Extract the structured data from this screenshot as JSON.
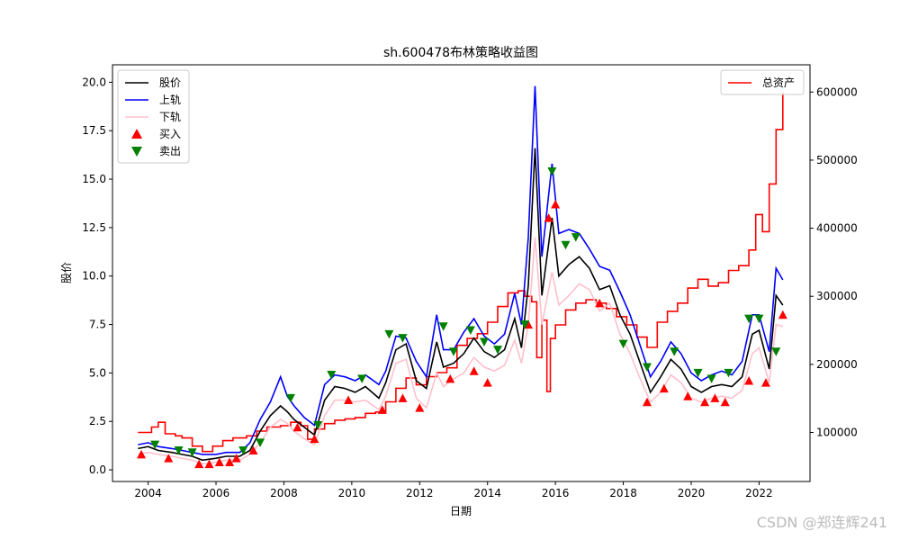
{
  "chart_data": {
    "type": "line",
    "title": "sh.600478布林策略收益图",
    "xlabel": "日期",
    "ylabel": "股价",
    "xlim": [
      2002.95,
      2023.5
    ],
    "ylim": [
      -0.6,
      20.9
    ],
    "y2lim": [
      28000,
      640000
    ],
    "x_ticks": [
      "2004",
      "2006",
      "2008",
      "2010",
      "2012",
      "2014",
      "2016",
      "2018",
      "2020",
      "2022"
    ],
    "x_tick_values": [
      2004,
      2006,
      2008,
      2010,
      2012,
      2014,
      2016,
      2018,
      2020,
      2022
    ],
    "y_ticks": [
      "0.0",
      "2.5",
      "5.0",
      "7.5",
      "10.0",
      "12.5",
      "15.0",
      "17.5",
      "20.0"
    ],
    "y_tick_values": [
      0,
      2.5,
      5,
      7.5,
      10,
      12.5,
      15,
      17.5,
      20
    ],
    "y2_ticks": [
      "100000",
      "200000",
      "300000",
      "400000",
      "500000",
      "600000"
    ],
    "y2_tick_values": [
      100000,
      200000,
      300000,
      400000,
      500000,
      600000
    ],
    "legend_left": [
      {
        "name": "股价",
        "color": "#000000",
        "kind": "line"
      },
      {
        "name": "上轨",
        "color": "#0000ff",
        "kind": "line"
      },
      {
        "name": "下轨",
        "color": "#ffc0cb",
        "kind": "line"
      },
      {
        "name": "买入",
        "color": "#ff0000",
        "kind": "triangle-up"
      },
      {
        "name": "卖出",
        "color": "#008000",
        "kind": "triangle-down"
      }
    ],
    "legend_right": [
      {
        "name": "总资产",
        "color": "#ff0000",
        "kind": "line"
      }
    ],
    "price": {
      "x": [
        2003.7,
        2004.0,
        2004.3,
        2004.7,
        2005.0,
        2005.3,
        2005.6,
        2006.0,
        2006.3,
        2006.7,
        2007.0,
        2007.3,
        2007.6,
        2007.9,
        2008.1,
        2008.3,
        2008.6,
        2008.9,
        2009.2,
        2009.5,
        2009.8,
        2010.1,
        2010.4,
        2010.8,
        2011.0,
        2011.3,
        2011.6,
        2011.9,
        2012.2,
        2012.5,
        2012.7,
        2013.0,
        2013.3,
        2013.6,
        2013.9,
        2014.2,
        2014.5,
        2014.8,
        2015.0,
        2015.2,
        2015.4,
        2015.6,
        2015.9,
        2016.1,
        2016.4,
        2016.7,
        2017.0,
        2017.3,
        2017.6,
        2017.9,
        2018.2,
        2018.5,
        2018.8,
        2019.1,
        2019.4,
        2019.7,
        2020.0,
        2020.3,
        2020.6,
        2020.9,
        2021.2,
        2021.5,
        2021.8,
        2022.0,
        2022.3,
        2022.5,
        2022.7
      ],
      "y": [
        1.1,
        1.2,
        1.0,
        0.9,
        0.8,
        0.7,
        0.5,
        0.6,
        0.7,
        0.7,
        1.0,
        2.0,
        2.8,
        3.3,
        3.0,
        2.6,
        2.2,
        1.8,
        3.6,
        4.3,
        4.2,
        4.0,
        4.3,
        3.7,
        4.5,
        6.2,
        6.5,
        4.6,
        4.2,
        6.6,
        5.3,
        5.5,
        6.0,
        6.8,
        6.1,
        5.8,
        6.2,
        7.8,
        6.3,
        9.5,
        16.6,
        9.0,
        13.0,
        10.0,
        10.6,
        11.0,
        10.4,
        9.3,
        9.5,
        8.0,
        7.0,
        5.5,
        4.0,
        4.8,
        5.7,
        5.2,
        4.3,
        4.0,
        4.3,
        4.4,
        4.3,
        4.8,
        7.0,
        7.2,
        5.2,
        9.0,
        8.5
      ]
    },
    "upper_band": {
      "x": [
        2003.7,
        2004.0,
        2004.3,
        2004.7,
        2005.0,
        2005.3,
        2005.6,
        2006.0,
        2006.3,
        2006.7,
        2007.0,
        2007.3,
        2007.6,
        2007.9,
        2008.1,
        2008.3,
        2008.6,
        2008.9,
        2009.2,
        2009.5,
        2009.8,
        2010.1,
        2010.4,
        2010.8,
        2011.0,
        2011.3,
        2011.6,
        2011.9,
        2012.2,
        2012.5,
        2012.7,
        2013.0,
        2013.3,
        2013.6,
        2013.9,
        2014.2,
        2014.5,
        2014.8,
        2015.0,
        2015.2,
        2015.4,
        2015.6,
        2015.9,
        2016.1,
        2016.4,
        2016.7,
        2017.0,
        2017.3,
        2017.6,
        2017.9,
        2018.2,
        2018.5,
        2018.8,
        2019.1,
        2019.4,
        2019.7,
        2020.0,
        2020.3,
        2020.6,
        2020.9,
        2021.2,
        2021.5,
        2021.8,
        2022.0,
        2022.3,
        2022.5,
        2022.7
      ],
      "y": [
        1.3,
        1.4,
        1.2,
        1.1,
        1.0,
        0.9,
        0.8,
        0.8,
        0.9,
        0.9,
        1.4,
        2.6,
        3.5,
        4.8,
        3.8,
        3.3,
        2.7,
        2.3,
        4.4,
        4.9,
        4.8,
        4.6,
        4.9,
        4.4,
        5.1,
        6.9,
        6.8,
        5.6,
        4.8,
        8.0,
        6.2,
        6.2,
        7.1,
        7.8,
        6.9,
        6.5,
        7.0,
        9.1,
        7.5,
        12.0,
        19.8,
        11.0,
        15.8,
        12.2,
        12.4,
        12.2,
        11.4,
        10.5,
        10.3,
        9.2,
        8.0,
        6.4,
        4.8,
        5.6,
        6.6,
        6.0,
        5.0,
        4.6,
        4.9,
        5.1,
        4.9,
        5.6,
        8.0,
        8.0,
        6.1,
        10.4,
        9.8
      ]
    },
    "lower_band": {
      "x": [
        2003.7,
        2004.0,
        2004.3,
        2004.7,
        2005.0,
        2005.3,
        2005.6,
        2006.0,
        2006.3,
        2006.7,
        2007.0,
        2007.3,
        2007.6,
        2007.9,
        2008.1,
        2008.3,
        2008.6,
        2008.9,
        2009.2,
        2009.5,
        2009.8,
        2010.1,
        2010.4,
        2010.8,
        2011.0,
        2011.3,
        2011.6,
        2011.9,
        2012.2,
        2012.5,
        2012.7,
        2013.0,
        2013.3,
        2013.6,
        2013.9,
        2014.2,
        2014.5,
        2014.8,
        2015.0,
        2015.2,
        2015.4,
        2015.6,
        2015.9,
        2016.1,
        2016.4,
        2016.7,
        2017.0,
        2017.3,
        2017.6,
        2017.9,
        2018.2,
        2018.5,
        2018.8,
        2019.1,
        2019.4,
        2019.7,
        2020.0,
        2020.3,
        2020.6,
        2020.9,
        2021.2,
        2021.5,
        2021.8,
        2022.0,
        2022.3,
        2022.5,
        2022.7
      ],
      "y": [
        0.8,
        0.9,
        0.8,
        0.7,
        0.6,
        0.5,
        0.3,
        0.4,
        0.5,
        0.5,
        0.8,
        1.4,
        2.2,
        2.6,
        2.4,
        2.0,
        1.6,
        1.3,
        2.8,
        3.6,
        3.6,
        3.5,
        3.6,
        3.1,
        3.8,
        5.5,
        5.7,
        3.7,
        3.2,
        5.0,
        4.3,
        4.7,
        5.0,
        5.8,
        5.3,
        5.1,
        5.4,
        6.7,
        5.5,
        7.5,
        12.0,
        7.5,
        10.2,
        8.5,
        9.0,
        9.6,
        9.3,
        8.2,
        8.6,
        7.0,
        6.0,
        4.7,
        3.5,
        4.0,
        4.9,
        4.5,
        3.7,
        3.5,
        3.7,
        3.8,
        3.7,
        4.1,
        6.0,
        6.3,
        4.5,
        7.5,
        7.4
      ]
    },
    "total_assets": {
      "x": [
        2003.7,
        2003.95,
        2004.1,
        2004.3,
        2004.5,
        2004.8,
        2005.0,
        2005.3,
        2005.6,
        2005.9,
        2006.2,
        2006.5,
        2006.9,
        2007.2,
        2007.5,
        2007.9,
        2008.2,
        2008.5,
        2008.7,
        2008.9,
        2009.2,
        2009.5,
        2009.8,
        2010.1,
        2010.4,
        2010.7,
        2011.0,
        2011.3,
        2011.6,
        2011.9,
        2012.2,
        2012.5,
        2012.8,
        2013.1,
        2013.4,
        2013.7,
        2014.0,
        2014.3,
        2014.6,
        2014.9,
        2015.1,
        2015.3,
        2015.45,
        2015.6,
        2015.75,
        2015.85,
        2016.0,
        2016.3,
        2016.6,
        2016.9,
        2017.2,
        2017.5,
        2017.8,
        2018.1,
        2018.4,
        2018.7,
        2019.0,
        2019.3,
        2019.6,
        2019.9,
        2020.2,
        2020.5,
        2020.8,
        2021.1,
        2021.4,
        2021.7,
        2021.9,
        2022.1,
        2022.3,
        2022.5,
        2022.7
      ],
      "y": [
        100000,
        100000,
        108000,
        115000,
        98000,
        95000,
        92000,
        80000,
        72000,
        80000,
        88000,
        92000,
        95000,
        102000,
        108000,
        110000,
        115000,
        110000,
        90000,
        105000,
        113000,
        118000,
        120000,
        122000,
        128000,
        130000,
        145000,
        165000,
        180000,
        170000,
        182000,
        188000,
        195000,
        228000,
        238000,
        245000,
        262000,
        285000,
        305000,
        308000,
        300000,
        292000,
        210000,
        265000,
        160000,
        238000,
        258000,
        280000,
        290000,
        295000,
        290000,
        282000,
        270000,
        258000,
        240000,
        225000,
        262000,
        278000,
        290000,
        312000,
        325000,
        315000,
        320000,
        338000,
        345000,
        368000,
        420000,
        395000,
        465000,
        545000,
        600000
      ]
    },
    "buy_signals": {
      "x": [
        2003.8,
        2004.6,
        2005.5,
        2005.8,
        2006.1,
        2006.4,
        2006.6,
        2007.1,
        2008.4,
        2008.9,
        2009.9,
        2010.9,
        2011.5,
        2012.0,
        2012.9,
        2013.6,
        2014.0,
        2015.2,
        2015.8,
        2016.0,
        2017.3,
        2018.7,
        2019.2,
        2019.9,
        2020.4,
        2020.7,
        2021.0,
        2021.7,
        2022.2,
        2022.7
      ],
      "y": [
        0.8,
        0.6,
        0.3,
        0.3,
        0.4,
        0.4,
        0.6,
        1.0,
        2.2,
        1.6,
        3.6,
        3.1,
        3.7,
        3.2,
        4.7,
        5.1,
        4.5,
        7.5,
        13.0,
        13.7,
        8.6,
        3.5,
        4.2,
        3.8,
        3.5,
        3.7,
        3.5,
        4.6,
        4.5,
        8.0
      ]
    },
    "sell_signals": {
      "x": [
        2004.2,
        2004.9,
        2005.3,
        2006.8,
        2007.3,
        2008.2,
        2009.0,
        2009.4,
        2010.3,
        2011.1,
        2011.5,
        2012.7,
        2013.0,
        2013.5,
        2013.9,
        2014.3,
        2015.1,
        2015.9,
        2016.3,
        2016.6,
        2018.0,
        2018.7,
        2019.5,
        2020.2,
        2020.6,
        2021.1,
        2021.7,
        2022.0,
        2022.5
      ],
      "y": [
        1.3,
        1.0,
        0.9,
        1.0,
        1.4,
        3.7,
        2.3,
        4.9,
        4.7,
        7.0,
        6.8,
        7.4,
        6.1,
        7.2,
        6.6,
        6.2,
        7.5,
        15.4,
        11.6,
        12.0,
        6.5,
        5.3,
        6.1,
        5.0,
        4.7,
        5.0,
        7.8,
        7.8,
        6.1
      ]
    }
  },
  "watermark": "CSDN @郑连辉241"
}
